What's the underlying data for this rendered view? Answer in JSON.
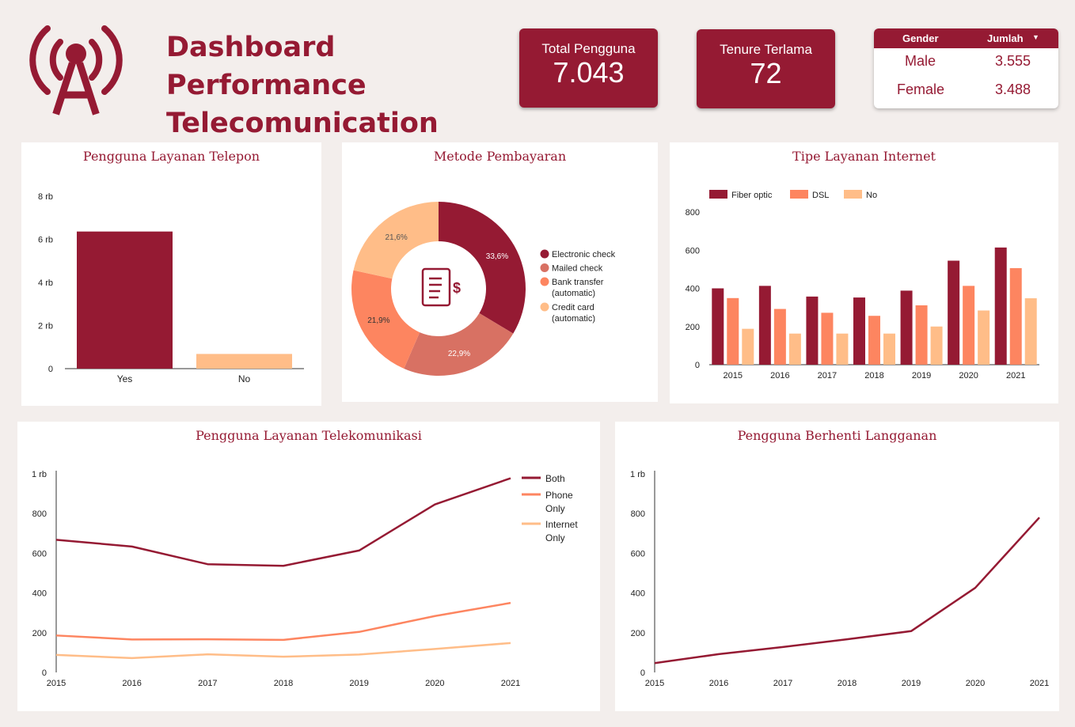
{
  "header": {
    "title_line1": "Dashboard Performance",
    "title_line2": "Telecomunication",
    "logo_icon": "radio-tower-icon"
  },
  "kpis": [
    {
      "label": "Total Pengguna",
      "value": "7.043"
    },
    {
      "label": "Tenure Terlama",
      "value": "72"
    }
  ],
  "gender_table": {
    "col_gender": "Gender",
    "col_jumlah": "Jumlah",
    "sort_icon": "sort-desc-icon",
    "rows": [
      {
        "gender": "Male",
        "jumlah": "3.555"
      },
      {
        "gender": "Female",
        "jumlah": "3.488"
      }
    ]
  },
  "colors": {
    "primary": "#951a33",
    "secondary": "#d87163",
    "tertiary": "#fd8560",
    "light": "#ffbd88",
    "background": "#f3eeec"
  },
  "chart_data": [
    {
      "type": "bar",
      "title": "Pengguna Layanan Telepon",
      "categories": [
        "Yes",
        "No"
      ],
      "values": [
        6361,
        682
      ],
      "ylim": [
        0,
        8000
      ],
      "yticks": [
        "0",
        "2 rb",
        "4 rb",
        "6 rb",
        "8 rb"
      ],
      "colors": [
        "#951a33",
        "#ffbd88"
      ]
    },
    {
      "type": "pie",
      "title": "Metode Pembayaran",
      "donut": true,
      "center_icon": "invoice-dollar-icon",
      "labels": [
        "Electronic check",
        "Mailed check",
        "Bank transfer (automatic)",
        "Credit card (automatic)"
      ],
      "legend_lines": [
        [
          "Electronic check"
        ],
        [
          "Mailed check"
        ],
        [
          "Bank transfer",
          "(automatic)"
        ],
        [
          "Credit card",
          "(automatic)"
        ]
      ],
      "values": [
        33.6,
        22.9,
        21.9,
        21.6
      ],
      "value_labels": [
        "33,6%",
        "22,9%",
        "21,9%",
        "21,6%"
      ],
      "colors": [
        "#951a33",
        "#d87163",
        "#fd8560",
        "#ffbd88"
      ],
      "legend": "right"
    },
    {
      "type": "bar",
      "title": "Tipe Layanan Internet",
      "categories": [
        "2015",
        "2016",
        "2017",
        "2018",
        "2019",
        "2020",
        "2021"
      ],
      "series": [
        {
          "name": "Fiber optic",
          "values": [
            400,
            413,
            357,
            352,
            388,
            545,
            614
          ],
          "color": "#951a33"
        },
        {
          "name": "DSL",
          "values": [
            349,
            292,
            272,
            256,
            311,
            413,
            506
          ],
          "color": "#fd8560"
        },
        {
          "name": "No",
          "values": [
            188,
            163,
            163,
            163,
            200,
            284,
            348
          ],
          "color": "#ffbd88"
        }
      ],
      "ylim": [
        0,
        800
      ],
      "yticks": [
        "0",
        "200",
        "400",
        "600",
        "800"
      ],
      "legend": "top-left",
      "grid": false
    },
    {
      "type": "line",
      "title": "Pengguna Layanan Telekomunikasi",
      "x": [
        "2015",
        "2016",
        "2017",
        "2018",
        "2019",
        "2020",
        "2021"
      ],
      "series": [
        {
          "name": "Both",
          "legend_lines": [
            "Both"
          ],
          "values": [
            668,
            634,
            545,
            537,
            614,
            846,
            978
          ],
          "color": "#951a33"
        },
        {
          "name": "Phone Only",
          "legend_lines": [
            "Phone",
            "Only"
          ],
          "values": [
            186,
            166,
            167,
            164,
            204,
            284,
            350
          ],
          "color": "#fd8560"
        },
        {
          "name": "Internet Only",
          "legend_lines": [
            "Internet",
            "Only"
          ],
          "values": [
            88,
            72,
            91,
            79,
            90,
            118,
            148
          ],
          "color": "#ffbd88"
        }
      ],
      "ylim": [
        0,
        1000
      ],
      "yticks": [
        "0",
        "200",
        "400",
        "600",
        "800",
        "1 rb"
      ],
      "legend": "right"
    },
    {
      "type": "line",
      "title": "Pengguna Berhenti Langganan",
      "x": [
        "2015",
        "2016",
        "2017",
        "2018",
        "2019",
        "2020",
        "2021"
      ],
      "series": [
        {
          "values": [
            47,
            92,
            128,
            167,
            208,
            426,
            780
          ],
          "color": "#951a33"
        }
      ],
      "ylim": [
        0,
        1000
      ],
      "yticks": [
        "0",
        "200",
        "400",
        "600",
        "800",
        "1 rb"
      ]
    }
  ]
}
